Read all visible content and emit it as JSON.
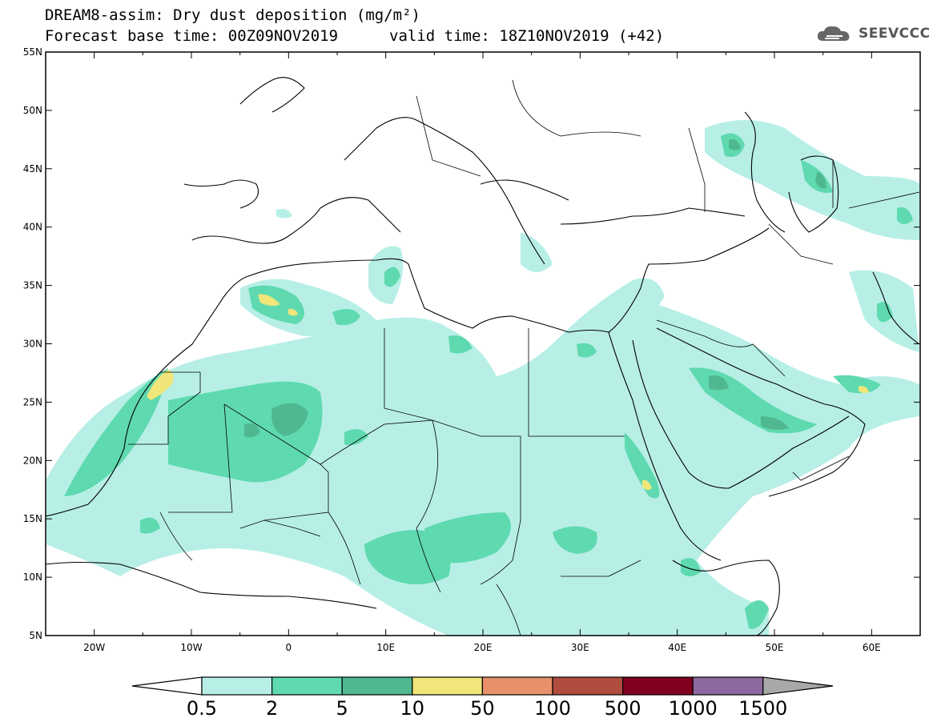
{
  "title": {
    "line1": "DREAM8-assim: Dry dust deposition (mg/m²)",
    "forecast_base": "Forecast base time: 00Z09NOV2019",
    "valid": "valid time: 18Z10NOV2019 (+42)"
  },
  "logo": {
    "text": "SEEVCCC",
    "icon": "cloud-icon"
  },
  "map": {
    "lon_range": [
      -25,
      65
    ],
    "lat_range": [
      5,
      55
    ],
    "lat_labels": [
      "55N",
      "50N",
      "45N",
      "40N",
      "35N",
      "30N",
      "25N",
      "20N",
      "15N",
      "10N",
      "5N"
    ],
    "lon_labels": [
      "20W",
      "10W",
      "0",
      "10E",
      "20E",
      "30E",
      "40E",
      "50E",
      "60E"
    ]
  },
  "colorbar": {
    "labels": [
      "0.5",
      "2",
      "5",
      "10",
      "50",
      "100",
      "500",
      "1000",
      "1500"
    ],
    "colors": [
      "#b7efe6",
      "#5fd9b0",
      "#50b890",
      "#f0e67a",
      "#e8906a",
      "#b04d3e",
      "#800020",
      "#8c6aa0",
      "#a8a8a8"
    ]
  }
}
